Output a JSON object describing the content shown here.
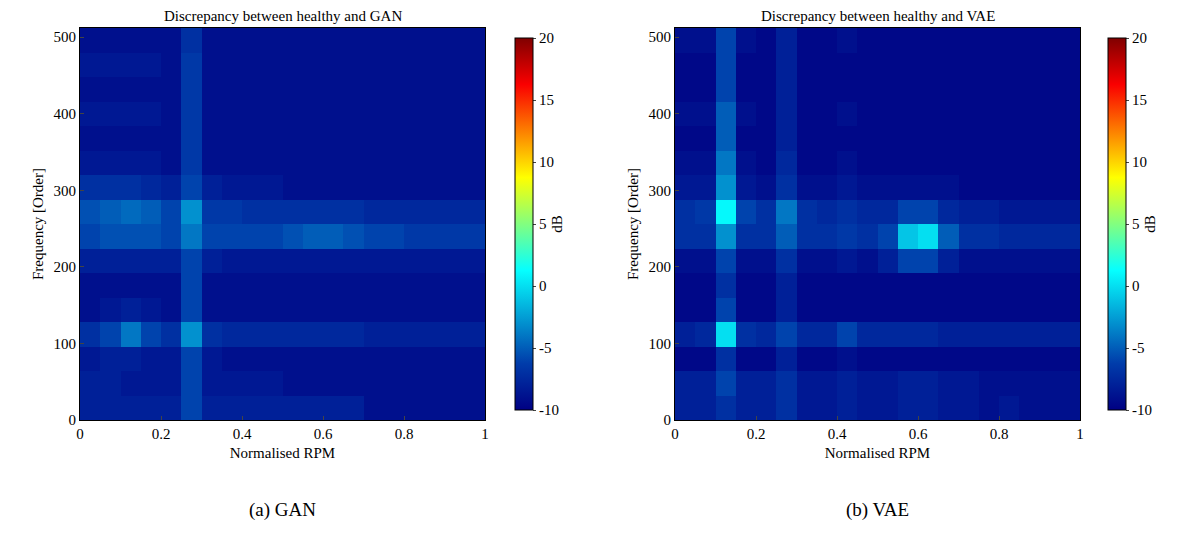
{
  "chart_data": [
    {
      "type": "heatmap",
      "title": "Discrepancy between healthy and GAN",
      "annotations": [
        {
          "text": "(a) GAN"
        }
      ],
      "x_label": "Normalised RPM",
      "y_label": "Frequency [Order]",
      "xlim": [
        0,
        1
      ],
      "xticks": [
        0,
        0.2,
        0.4,
        0.6,
        0.8,
        1
      ],
      "ylim": [
        0,
        512
      ],
      "yticks": [
        0,
        100,
        200,
        300,
        400,
        500
      ],
      "color": "jet",
      "colorbar": {
        "title": "dB",
        "range": [
          -10,
          20
        ],
        "ticks": [
          -10,
          -5,
          0,
          5,
          10,
          15,
          20
        ]
      },
      "x": [
        0.025,
        0.075,
        0.125,
        0.175,
        0.225,
        0.275,
        0.325,
        0.375,
        0.425,
        0.475,
        0.525,
        0.575,
        0.625,
        0.675,
        0.725,
        0.775,
        0.825,
        0.875,
        0.925,
        0.975
      ],
      "y": [
        16,
        48,
        80,
        112,
        144,
        176,
        208,
        240,
        272,
        304,
        336,
        368,
        400,
        432,
        464,
        496
      ],
      "z": [
        [
          -8,
          -8,
          -8,
          -8,
          -8,
          -6,
          -8,
          -8,
          -8,
          -8,
          -8,
          -8,
          -8,
          -8,
          -9,
          -9,
          -9,
          -9,
          -9,
          -9
        ],
        [
          -8,
          -8,
          -8.5,
          -8.5,
          -8.5,
          -6,
          -8.5,
          -8.5,
          -8.5,
          -8.5,
          -9,
          -9,
          -9,
          -9,
          -9,
          -9,
          -9,
          -9,
          -9,
          -9
        ],
        [
          -8.5,
          -8,
          -8,
          -8.5,
          -8.5,
          -6,
          -8.5,
          -9,
          -9,
          -9,
          -9,
          -9,
          -9,
          -9,
          -9,
          -9,
          -9,
          -9,
          -9,
          -9
        ],
        [
          -7,
          -6,
          -4,
          -6,
          -7,
          -3,
          -7,
          -7.5,
          -7.5,
          -7.5,
          -7.5,
          -7.5,
          -7.5,
          -7.5,
          -8,
          -8,
          -8,
          -8,
          -8,
          -8
        ],
        [
          -9,
          -8.5,
          -8,
          -8.5,
          -9,
          -6,
          -9,
          -9,
          -9,
          -9,
          -9,
          -9,
          -9,
          -9,
          -9,
          -9,
          -9,
          -9,
          -9,
          -9
        ],
        [
          -9,
          -9,
          -9,
          -9,
          -9,
          -6,
          -9,
          -9,
          -9,
          -9,
          -9,
          -9,
          -9,
          -9,
          -9,
          -9,
          -9,
          -9,
          -9,
          -9
        ],
        [
          -8,
          -8,
          -8,
          -8,
          -8,
          -6,
          -8,
          -8.5,
          -8.5,
          -8.5,
          -8.5,
          -8.5,
          -8.5,
          -8.5,
          -8.5,
          -8.5,
          -8.5,
          -8.5,
          -8.5,
          -8.5
        ],
        [
          -6,
          -5.5,
          -5.5,
          -5.5,
          -6,
          -4,
          -6,
          -6,
          -6,
          -6,
          -5.5,
          -5,
          -5,
          -5.5,
          -6,
          -6,
          -6.5,
          -6.5,
          -6.5,
          -6.5
        ],
        [
          -5.5,
          -5,
          -4.5,
          -5,
          -6,
          -3,
          -6.5,
          -6.5,
          -7,
          -7,
          -7,
          -7,
          -7,
          -7,
          -7.5,
          -7.5,
          -7.5,
          -7.5,
          -7.5,
          -7.5
        ],
        [
          -7,
          -7,
          -7,
          -7.5,
          -8,
          -6,
          -8,
          -8.5,
          -8.5,
          -8.5,
          -9,
          -9,
          -9,
          -9,
          -9,
          -9,
          -9,
          -9,
          -9,
          -9
        ],
        [
          -8.5,
          -8.5,
          -8.5,
          -8.5,
          -9,
          -6.5,
          -9,
          -9,
          -9,
          -9,
          -9,
          -9,
          -9,
          -9,
          -9,
          -9,
          -9,
          -9,
          -9,
          -9
        ],
        [
          -9,
          -9,
          -9,
          -9,
          -9,
          -6.5,
          -9,
          -9,
          -9,
          -9,
          -9,
          -9,
          -9,
          -9,
          -9,
          -9,
          -9,
          -9,
          -9,
          -9
        ],
        [
          -8.5,
          -8.5,
          -8.5,
          -8.5,
          -9,
          -6.5,
          -9,
          -9,
          -9,
          -9,
          -9,
          -9,
          -9,
          -9,
          -9,
          -9,
          -9,
          -9,
          -9,
          -9
        ],
        [
          -9,
          -9,
          -9,
          -9,
          -9,
          -6.5,
          -9,
          -9,
          -9,
          -9,
          -9,
          -9,
          -9,
          -9,
          -9,
          -9,
          -9,
          -9,
          -9,
          -9
        ],
        [
          -8.5,
          -8.5,
          -8.5,
          -8.5,
          -9,
          -6.5,
          -9,
          -9,
          -9,
          -9,
          -9,
          -9,
          -9,
          -9,
          -9,
          -9,
          -9,
          -9,
          -9,
          -9
        ],
        [
          -9,
          -9,
          -9,
          -9,
          -9,
          -7,
          -9,
          -9,
          -9,
          -9,
          -9,
          -9,
          -9,
          -9,
          -9,
          -9,
          -9,
          -9,
          -9,
          -9
        ]
      ]
    },
    {
      "type": "heatmap",
      "title": "Discrepancy between healthy and VAE",
      "annotations": [
        {
          "text": "(b) VAE"
        }
      ],
      "x_label": "Normalised RPM",
      "y_label": "Frequency [Order]",
      "xlim": [
        0,
        1
      ],
      "xticks": [
        0,
        0.2,
        0.4,
        0.6,
        0.8,
        1
      ],
      "ylim": [
        0,
        512
      ],
      "yticks": [
        0,
        100,
        200,
        300,
        400,
        500
      ],
      "color": "jet",
      "colorbar": {
        "title": "dB",
        "range": [
          -10,
          20
        ],
        "ticks": [
          -10,
          -5,
          0,
          5,
          10,
          15,
          20
        ]
      },
      "x": [
        0.025,
        0.075,
        0.125,
        0.175,
        0.225,
        0.275,
        0.325,
        0.375,
        0.425,
        0.475,
        0.525,
        0.575,
        0.625,
        0.675,
        0.725,
        0.775,
        0.825,
        0.875,
        0.925,
        0.975
      ],
      "y": [
        16,
        48,
        80,
        112,
        144,
        176,
        208,
        240,
        272,
        304,
        336,
        368,
        400,
        432,
        464,
        496
      ],
      "z": [
        [
          -8,
          -8,
          -7,
          -8,
          -8,
          -7,
          -8.5,
          -8.5,
          -8,
          -8.5,
          -8.5,
          -8,
          -8,
          -8.5,
          -8.5,
          -9,
          -8.5,
          -9,
          -9,
          -9
        ],
        [
          -8,
          -8,
          -6,
          -8,
          -8,
          -7,
          -8.5,
          -8.5,
          -8,
          -8.5,
          -8.5,
          -8,
          -8,
          -8.5,
          -8.5,
          -9,
          -9,
          -9,
          -9,
          -9
        ],
        [
          -9.5,
          -9.5,
          -7,
          -9.5,
          -9.5,
          -8,
          -9.5,
          -9.5,
          -9,
          -9.5,
          -9.5,
          -9.5,
          -9.5,
          -9.5,
          -9.5,
          -9.5,
          -9.5,
          -9.5,
          -9.5,
          -9.5
        ],
        [
          -8,
          -7.5,
          0,
          -7,
          -7.5,
          -6,
          -7.5,
          -7.5,
          -6,
          -7.5,
          -7.5,
          -7.5,
          -7.5,
          -8,
          -8,
          -8,
          -8,
          -8,
          -8,
          -8
        ],
        [
          -9.5,
          -9.5,
          -6,
          -9.5,
          -9.5,
          -8,
          -9.5,
          -9.5,
          -9.5,
          -9.5,
          -9.5,
          -9.5,
          -9.5,
          -9.5,
          -9.5,
          -9.5,
          -9.5,
          -9.5,
          -9.5,
          -9.5
        ],
        [
          -9.5,
          -9.5,
          -7,
          -9.5,
          -9.5,
          -8,
          -9.5,
          -9.5,
          -9.5,
          -9.5,
          -9.5,
          -9.5,
          -9.5,
          -9.5,
          -9.5,
          -9.5,
          -9.5,
          -9.5,
          -9.5,
          -9.5
        ],
        [
          -9,
          -9,
          -6,
          -9,
          -9,
          -7,
          -9,
          -9,
          -8.5,
          -9,
          -8,
          -6,
          -6,
          -8,
          -9,
          -9,
          -9,
          -9,
          -9,
          -9
        ],
        [
          -7,
          -7,
          -3,
          -7,
          -7,
          -5,
          -7,
          -7,
          -6.5,
          -7,
          -6,
          -1,
          0,
          -5,
          -7,
          -7,
          -7.5,
          -7.5,
          -7.5,
          -7.5
        ],
        [
          -7,
          -6.5,
          1,
          -6,
          -7,
          -4,
          -7,
          -7.5,
          -7,
          -7.5,
          -7.5,
          -6,
          -6,
          -7.5,
          -8,
          -8,
          -8.5,
          -8.5,
          -8.5,
          -8.5
        ],
        [
          -8.5,
          -8.5,
          -3,
          -8.5,
          -9,
          -7,
          -9,
          -9,
          -8.5,
          -9,
          -9,
          -9,
          -9,
          -9,
          -9.5,
          -9.5,
          -9.5,
          -9.5,
          -9.5,
          -9.5
        ],
        [
          -9,
          -9,
          -4,
          -9,
          -9.5,
          -7.5,
          -9.5,
          -9.5,
          -9,
          -9.5,
          -9.5,
          -9.5,
          -9.5,
          -9.5,
          -9.5,
          -9.5,
          -9.5,
          -9.5,
          -9.5,
          -9.5
        ],
        [
          -9.5,
          -9.5,
          -5,
          -9.5,
          -9.5,
          -8,
          -9.5,
          -9.5,
          -9.5,
          -9.5,
          -9.5,
          -9.5,
          -9.5,
          -9.5,
          -9.5,
          -9.5,
          -9.5,
          -9.5,
          -9.5,
          -9.5
        ],
        [
          -9,
          -9,
          -5,
          -9,
          -9.5,
          -8,
          -9.5,
          -9.5,
          -9,
          -9.5,
          -9.5,
          -9.5,
          -9.5,
          -9.5,
          -9.5,
          -9.5,
          -9.5,
          -9.5,
          -9.5,
          -9.5
        ],
        [
          -9.5,
          -9.5,
          -6,
          -9.5,
          -9.5,
          -8,
          -9.5,
          -9.5,
          -9.5,
          -9.5,
          -9.5,
          -9.5,
          -9.5,
          -9.5,
          -9.5,
          -9.5,
          -9.5,
          -9.5,
          -9.5,
          -9.5
        ],
        [
          -9.5,
          -9.5,
          -6,
          -9.5,
          -9.5,
          -8,
          -9.5,
          -9.5,
          -9.5,
          -9.5,
          -9.5,
          -9.5,
          -9.5,
          -9.5,
          -9.5,
          -9.5,
          -9.5,
          -9.5,
          -9.5,
          -9.5
        ],
        [
          -9,
          -9,
          -6,
          -9,
          -9.5,
          -8,
          -9.5,
          -9.5,
          -9,
          -9.5,
          -9.5,
          -9.5,
          -9.5,
          -9.5,
          -9.5,
          -9.5,
          -9.5,
          -9.5,
          -9.5,
          -9.5
        ]
      ]
    }
  ]
}
